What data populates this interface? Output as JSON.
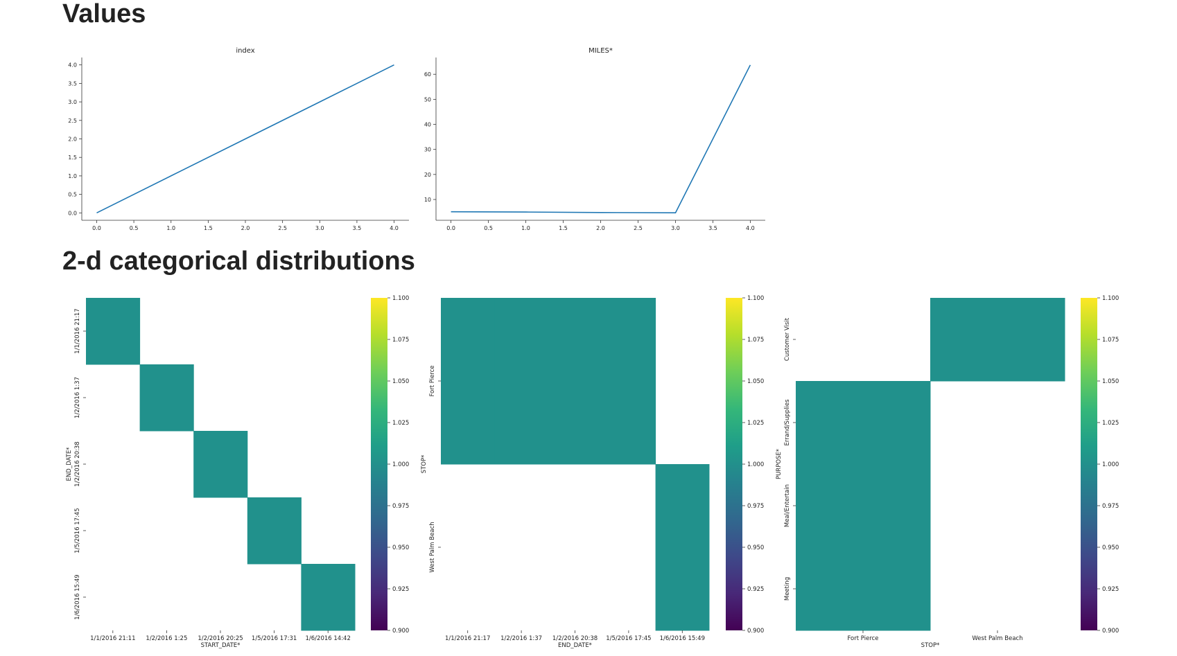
{
  "sections": {
    "values_title": "Values",
    "categorical_title": "2-d categorical distributions"
  },
  "colors": {
    "line": "#1f77b4",
    "heat_value": "#21918c",
    "axis": "#333333"
  },
  "chart_data": [
    {
      "type": "line",
      "title": "index",
      "x": [
        0,
        1,
        2,
        3,
        4
      ],
      "y": [
        0,
        1,
        2,
        3,
        4
      ],
      "xticks": [
        0.0,
        0.5,
        1.0,
        1.5,
        2.0,
        2.5,
        3.0,
        3.5,
        4.0
      ],
      "yticks": [
        0.0,
        0.5,
        1.0,
        1.5,
        2.0,
        2.5,
        3.0,
        3.5,
        4.0
      ],
      "xlim": [
        -0.2,
        4.2
      ],
      "ylim": [
        -0.2,
        4.2
      ],
      "xlabel": "",
      "ylabel": "",
      "grid": false
    },
    {
      "type": "line",
      "title": "MILES*",
      "x": [
        0,
        1,
        2,
        3,
        4
      ],
      "y": [
        5.1,
        5.0,
        4.8,
        4.7,
        63.7
      ],
      "xticks": [
        0.0,
        0.5,
        1.0,
        1.5,
        2.0,
        2.5,
        3.0,
        3.5,
        4.0
      ],
      "yticks": [
        10,
        20,
        30,
        40,
        50,
        60
      ],
      "xlim": [
        -0.2,
        4.2
      ],
      "ylim": [
        1.7,
        66.7
      ],
      "xlabel": "",
      "ylabel": "",
      "grid": false
    },
    {
      "type": "heatmap",
      "xlabel": "START_DATE*",
      "ylabel": "END_DATE*",
      "x_categories": [
        "1/1/2016 21:11",
        "1/2/2016 1:25",
        "1/2/2016 20:25",
        "1/5/2016 17:31",
        "1/6/2016 14:42"
      ],
      "y_categories": [
        "1/1/2016 21:17",
        "1/2/2016 1:37",
        "1/2/2016 20:38",
        "1/5/2016 17:45",
        "1/6/2016 15:49"
      ],
      "cells": [
        [
          0,
          0,
          1
        ],
        [
          1,
          1,
          1
        ],
        [
          2,
          2,
          1
        ],
        [
          3,
          3,
          1
        ],
        [
          4,
          4,
          1
        ]
      ],
      "colorbar": {
        "min": 0.9,
        "max": 1.1,
        "ticks": [
          "1.100",
          "1.075",
          "1.050",
          "1.025",
          "1.000",
          "0.975",
          "0.950",
          "0.925",
          "0.900"
        ]
      }
    },
    {
      "type": "heatmap",
      "xlabel": "END_DATE*",
      "ylabel": "STOP*",
      "x_categories": [
        "1/1/2016 21:17",
        "1/2/2016 1:37",
        "1/2/2016 20:38",
        "1/5/2016 17:45",
        "1/6/2016 15:49"
      ],
      "y_categories": [
        "Fort Pierce",
        "West Palm Beach"
      ],
      "cells": [
        [
          0,
          0,
          1
        ],
        [
          1,
          0,
          1
        ],
        [
          2,
          0,
          1
        ],
        [
          3,
          0,
          1
        ],
        [
          4,
          1,
          1
        ]
      ],
      "colorbar": {
        "min": 0.9,
        "max": 1.1,
        "ticks": [
          "1.100",
          "1.075",
          "1.050",
          "1.025",
          "1.000",
          "0.975",
          "0.950",
          "0.925",
          "0.900"
        ]
      }
    },
    {
      "type": "heatmap",
      "xlabel": "STOP*",
      "ylabel": "PURPOSE*",
      "x_categories": [
        "Fort Pierce",
        "West Palm Beach"
      ],
      "y_categories": [
        "Customer Visit",
        "Errand/Supplies",
        "Meal/Entertain",
        "Meeting"
      ],
      "cells": [
        [
          1,
          0,
          1
        ],
        [
          0,
          1,
          1
        ],
        [
          0,
          2,
          1
        ],
        [
          0,
          3,
          1
        ]
      ],
      "colorbar": {
        "min": 0.9,
        "max": 1.1,
        "ticks": [
          "1.100",
          "1.075",
          "1.050",
          "1.025",
          "1.000",
          "0.975",
          "0.950",
          "0.925",
          "0.900"
        ]
      }
    }
  ]
}
